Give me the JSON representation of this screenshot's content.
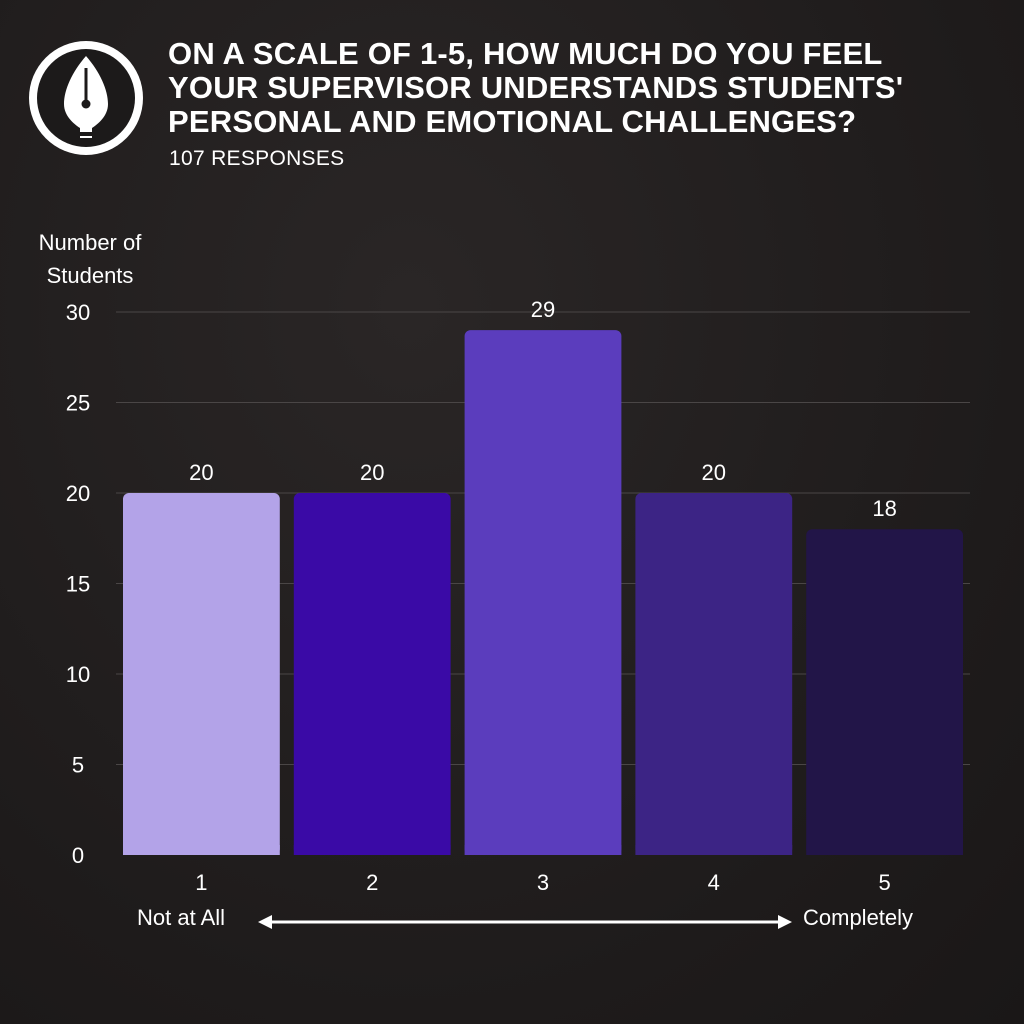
{
  "header": {
    "title_lines": [
      "ON A SCALE OF 1-5, HOW MUCH DO YOU FEEL",
      "YOUR SUPERVISOR UNDERSTANDS STUDENTS'",
      "PERSONAL AND EMOTIONAL CHALLENGES?"
    ],
    "subtitle": "107 RESPONSES",
    "logo_icon": "fountain-pen-nib-icon"
  },
  "scale": {
    "left_label": "Not at All",
    "right_label": "Completely"
  },
  "chart_data": {
    "type": "bar",
    "title": "ON A SCALE OF 1-5, HOW MUCH DO YOU FEEL YOUR SUPERVISOR UNDERSTANDS STUDENTS' PERSONAL AND EMOTIONAL CHALLENGES?",
    "subtitle": "107 RESPONSES",
    "categories": [
      "1",
      "2",
      "3",
      "4",
      "5"
    ],
    "values": [
      20,
      20,
      29,
      20,
      18
    ],
    "data_labels": [
      "20",
      "20",
      "29",
      "20",
      "18"
    ],
    "colors": [
      "#b3a3e8",
      "#3a0aa6",
      "#5b3dbd",
      "#3c2485",
      "#221548"
    ],
    "xlabel": "",
    "ylabel": "Number of Students",
    "ylabel_lines": [
      "Number of",
      "Students"
    ],
    "ylim": [
      0,
      30
    ],
    "yticks": [
      0,
      5,
      10,
      15,
      20,
      25,
      30
    ],
    "grid": true,
    "legend": "none"
  }
}
